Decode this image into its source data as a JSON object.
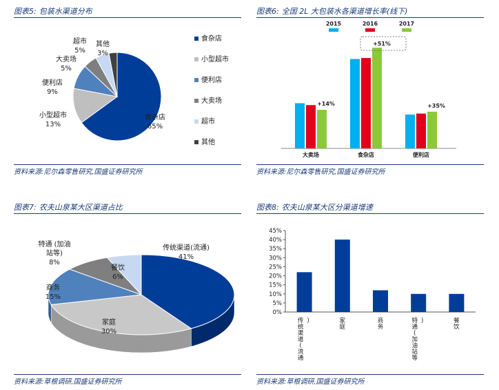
{
  "panels": [
    {
      "title_label": "图表5:",
      "title_text": "包装水渠道分布",
      "source": "资料来源:尼尔森零售研究,国盛证券研究所"
    },
    {
      "title_label": "图表6:",
      "title_text": "全国 2L 大包装水各渠道增长率(线下)",
      "source": "资料来源:尼尔森零售研究,国盛证券研究所"
    },
    {
      "title_label": "图表7:",
      "title_text": "农夫山泉某大区渠道占比",
      "source": "资料来源:草根调研,国盛证券研究所"
    },
    {
      "title_label": "图表8:",
      "title_text": "农夫山泉某大区分渠道增速",
      "source": "资料来源:草根调研,国盛证券研究所"
    }
  ],
  "chart_data": [
    {
      "type": "pie",
      "title": "包装水渠道分布",
      "categories": [
        "食杂店",
        "小型超市",
        "便利店",
        "大卖场",
        "超市",
        "其他"
      ],
      "values": [
        65,
        13,
        9,
        5,
        5,
        3
      ],
      "value_labels": [
        "65%",
        "13%",
        "9%",
        "5%",
        "5%",
        "3%"
      ],
      "colors": [
        "#003d99",
        "#bfbfbf",
        "#4f81bd",
        "#7f7f7f",
        "#c6d9f1",
        "#404040"
      ],
      "legend_position": "right"
    },
    {
      "type": "bar",
      "title": "全国 2L 大包装水各渠道增长率(线下)",
      "categories": [
        "大卖场",
        "食杂店",
        "便利店"
      ],
      "series": [
        {
          "name": "2015",
          "values": [
            4.8,
            9.5,
            3.6
          ],
          "color": "#00b0f0"
        },
        {
          "name": "2016",
          "values": [
            4.6,
            9.6,
            3.7
          ],
          "color": "#e0001b"
        },
        {
          "name": "2017",
          "values": [
            4.1,
            10.7,
            3.9
          ],
          "color": "#8cc83c"
        }
      ],
      "annotations": [
        "+14%",
        "+51%",
        "+35%"
      ],
      "legend_position": "top",
      "grid": false
    },
    {
      "type": "pie",
      "title": "农夫山泉某大区渠道占比",
      "categories": [
        "传统渠道(流通)",
        "家庭",
        "商务",
        "特通(加油站等)",
        "餐饮"
      ],
      "values": [
        41,
        30,
        15,
        8,
        6
      ],
      "value_labels": [
        "41%",
        "30%",
        "15%",
        "8%",
        "6%"
      ],
      "label_lines": [
        [
          "传统渠道(流通)",
          "41%"
        ],
        [
          "家庭",
          "30%"
        ],
        [
          "商务",
          "15%"
        ],
        [
          "特通 (加油",
          "站等)",
          "8%"
        ],
        [
          "餐饮",
          "6%"
        ]
      ],
      "colors": [
        "#003d99",
        "#c8c8c8",
        "#4f81bd",
        "#7f7f7f",
        "#c6d9f1"
      ],
      "style": "3d"
    },
    {
      "type": "bar",
      "title": "农夫山泉某大区分渠道增速",
      "categories": [
        "传统渠道(流通)",
        "家庭",
        "商务",
        "特通(加油站等)",
        "餐饮"
      ],
      "values": [
        22,
        40,
        12,
        10,
        10
      ],
      "ylim": [
        0,
        45
      ],
      "yticks": [
        "0%",
        "5%",
        "10%",
        "15%",
        "20%",
        "25%",
        "30%",
        "35%",
        "40%",
        "45%"
      ],
      "color": "#003d99",
      "grid": false
    }
  ]
}
